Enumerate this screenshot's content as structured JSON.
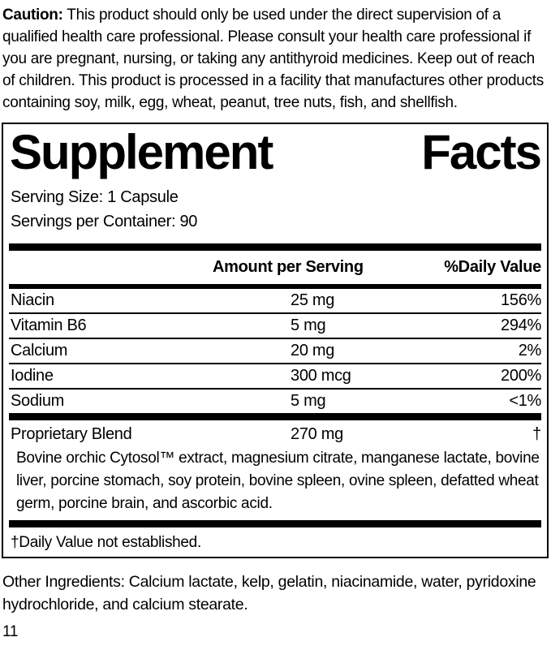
{
  "colors": {
    "text": "#000000",
    "background": "#ffffff",
    "rule": "#000000"
  },
  "caution": {
    "label": "Caution:",
    "text": "This product should only be used under the direct supervision of a qualified health care professional. Please consult your health care professional if you are pregnant, nursing, or taking any antithyroid medicines. Keep out of reach of children. This product is processed in a facility that manufactures other products containing soy, milk, egg, wheat, peanut, tree nuts, fish, and shellfish."
  },
  "supplement_facts": {
    "title": {
      "word1": "Supplement",
      "word2": "Facts"
    },
    "serving_size": "Serving Size: 1 Capsule",
    "servings_per_container": "Servings per Container: 90",
    "header": {
      "amount": "Amount per Serving",
      "daily_value": "%Daily Value"
    },
    "nutrients": [
      {
        "name": "Niacin",
        "amount": "25 mg",
        "daily_value": "156%"
      },
      {
        "name": "Vitamin B6",
        "amount": "5 mg",
        "daily_value": "294%"
      },
      {
        "name": "Calcium",
        "amount": "20 mg",
        "daily_value": "2%"
      },
      {
        "name": "Iodine",
        "amount": "300 mcg",
        "daily_value": "200%"
      },
      {
        "name": "Sodium",
        "amount": "5 mg",
        "daily_value": "<1%"
      }
    ],
    "proprietary_blend": {
      "name": "Proprietary Blend",
      "amount": "270 mg",
      "daily_value": "†",
      "description": "Bovine orchic Cytosol™ extract, magnesium citrate, manganese lactate, bovine liver, porcine stomach, soy protein, bovine spleen, ovine spleen, defatted wheat germ, porcine brain, and ascorbic acid."
    },
    "footnote": "†Daily Value not established."
  },
  "other_ingredients": "Other Ingredients: Calcium lactate, kelp, gelatin, niacinamide, water, pyridoxine hydrochloride, and calcium stearate.",
  "page_number": "11"
}
